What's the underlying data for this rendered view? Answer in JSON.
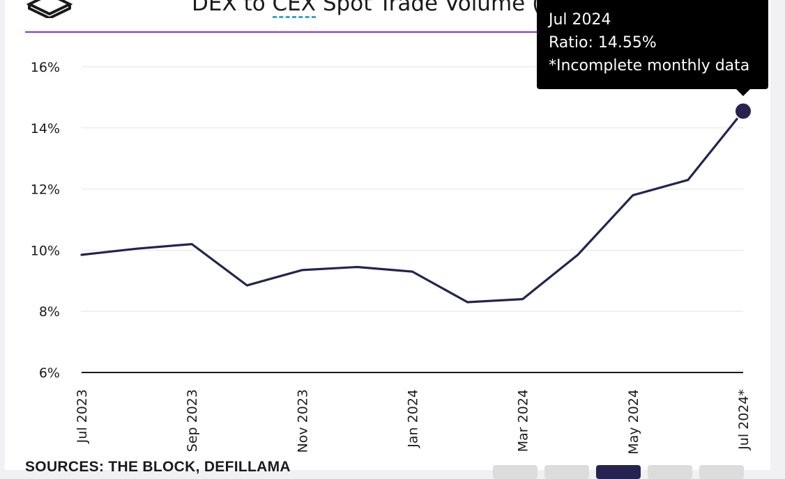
{
  "header": {
    "title_pre": "DEX to ",
    "title_dashed": "CEX",
    "title_post": " Spot Trade Volume (%)"
  },
  "footer": {
    "sources": "SOURCES: THE BLOCK, DEFILLAMA"
  },
  "tooltip": {
    "date": "Jul 2024",
    "ratio": "Ratio: 14.55%",
    "note": "*Incomplete monthly data"
  },
  "range_buttons": [
    {
      "active": false
    },
    {
      "active": false
    },
    {
      "active": true
    },
    {
      "active": false
    },
    {
      "active": false
    }
  ],
  "colors": {
    "line": "#262350",
    "accent_rule": "#8a2be2",
    "dashed_underline": "#3ba3d0",
    "tooltip_bg": "#000000"
  },
  "chart_data": {
    "type": "line",
    "title": "DEX to CEX Spot Trade Volume (%)",
    "x": [
      "Jul 2023",
      "Aug 2023",
      "Sep 2023",
      "Oct 2023",
      "Nov 2023",
      "Dec 2023",
      "Jan 2024",
      "Feb 2024",
      "Mar 2024",
      "Apr 2024",
      "May 2024",
      "Jun 2024",
      "Jul 2024*"
    ],
    "x_tick_labels": [
      "Jul 2023",
      "Sep 2023",
      "Nov 2023",
      "Jan 2024",
      "Mar 2024",
      "May 2024",
      "Jul 2024*"
    ],
    "series": [
      {
        "values": [
          9.85,
          10.05,
          10.2,
          8.85,
          9.35,
          9.45,
          9.3,
          8.3,
          8.4,
          9.85,
          11.8,
          12.3,
          14.55
        ]
      }
    ],
    "ylim": [
      6,
      16
    ],
    "yticks": [
      6,
      8,
      10,
      12,
      14,
      16
    ],
    "ytick_labels": [
      "6%",
      "8%",
      "10%",
      "12%",
      "14%",
      "16%"
    ],
    "grid": true,
    "highlighted_point": "Jul 2024*"
  }
}
